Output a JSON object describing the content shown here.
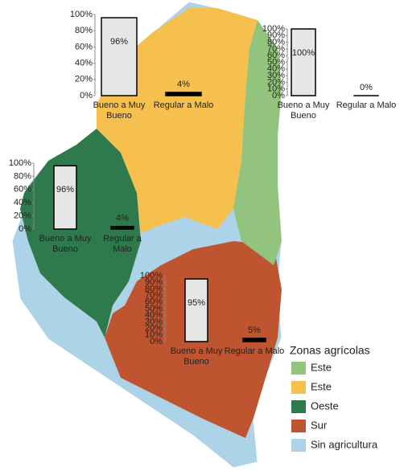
{
  "chart_data": [
    {
      "type": "bar",
      "categories": [
        "Bueno a Muy Bueno",
        "Regular a Malo"
      ],
      "values": [
        96,
        4
      ],
      "value_labels": [
        "96%",
        "4%"
      ],
      "colors": [
        "#e6e6e6",
        "#000000"
      ],
      "ylim": [
        0,
        100
      ],
      "yticks": [
        {
          "value": 0,
          "label": "0%"
        },
        {
          "value": 20,
          "label": "20%"
        },
        {
          "value": 40,
          "label": "40%"
        },
        {
          "value": 60,
          "label": "60%"
        },
        {
          "value": 80,
          "label": "80%"
        },
        {
          "value": 100,
          "label": "100%"
        }
      ]
    },
    {
      "type": "bar",
      "categories": [
        "Bueno a Muy Bueno",
        "Regular a Malo"
      ],
      "values": [
        100,
        0
      ],
      "value_labels": [
        "100%",
        "0%"
      ],
      "colors": [
        "#e6e6e6",
        "#000000"
      ],
      "ylim": [
        0,
        100
      ],
      "yticks": [
        {
          "value": 0,
          "label": "0%"
        },
        {
          "value": 10,
          "label": "10%"
        },
        {
          "value": 20,
          "label": "20%"
        },
        {
          "value": 30,
          "label": "30%"
        },
        {
          "value": 40,
          "label": "40%"
        },
        {
          "value": 50,
          "label": "50%"
        },
        {
          "value": 60,
          "label": "60%"
        },
        {
          "value": 70,
          "label": "70%"
        },
        {
          "value": 80,
          "label": "80%"
        },
        {
          "value": 90,
          "label": "90%"
        },
        {
          "value": 100,
          "label": "100%"
        }
      ]
    },
    {
      "type": "bar",
      "categories": [
        "Bueno a Muy Bueno",
        "Regular a Malo"
      ],
      "values": [
        96,
        4
      ],
      "value_labels": [
        "96%",
        "4%"
      ],
      "colors": [
        "#e6e6e6",
        "#000000"
      ],
      "ylim": [
        0,
        100
      ],
      "yticks": [
        {
          "value": 0,
          "label": "0%"
        },
        {
          "value": 20,
          "label": "20%"
        },
        {
          "value": 40,
          "label": "40%"
        },
        {
          "value": 60,
          "label": "60%"
        },
        {
          "value": 80,
          "label": "80%"
        },
        {
          "value": 100,
          "label": "100%"
        }
      ]
    },
    {
      "type": "bar",
      "categories": [
        "Bueno a Muy Bueno",
        "Regular a Malo"
      ],
      "values": [
        95,
        5
      ],
      "value_labels": [
        "95%",
        "5%"
      ],
      "colors": [
        "#e6e6e6",
        "#000000"
      ],
      "ylim": [
        0,
        100
      ],
      "yticks": [
        {
          "value": 0,
          "label": "0%"
        },
        {
          "value": 10,
          "label": "10%"
        },
        {
          "value": 20,
          "label": "20%"
        },
        {
          "value": 30,
          "label": "30%"
        },
        {
          "value": 40,
          "label": "40%"
        },
        {
          "value": 50,
          "label": "50%"
        },
        {
          "value": 60,
          "label": "60%"
        },
        {
          "value": 70,
          "label": "70%"
        },
        {
          "value": 80,
          "label": "80%"
        },
        {
          "value": 90,
          "label": "90%"
        },
        {
          "value": 100,
          "label": "100%"
        }
      ]
    }
  ],
  "legend": {
    "title": "Zonas agrícolas",
    "items": [
      {
        "label": "Este",
        "color": "#93c47d"
      },
      {
        "label": "Este",
        "color": "#f6c04e"
      },
      {
        "label": "Oeste",
        "color": "#2f7a4c"
      },
      {
        "label": "Sur",
        "color": "#bf5430"
      },
      {
        "label": "Sin agricultura",
        "color": "#acd3e8"
      }
    ]
  }
}
